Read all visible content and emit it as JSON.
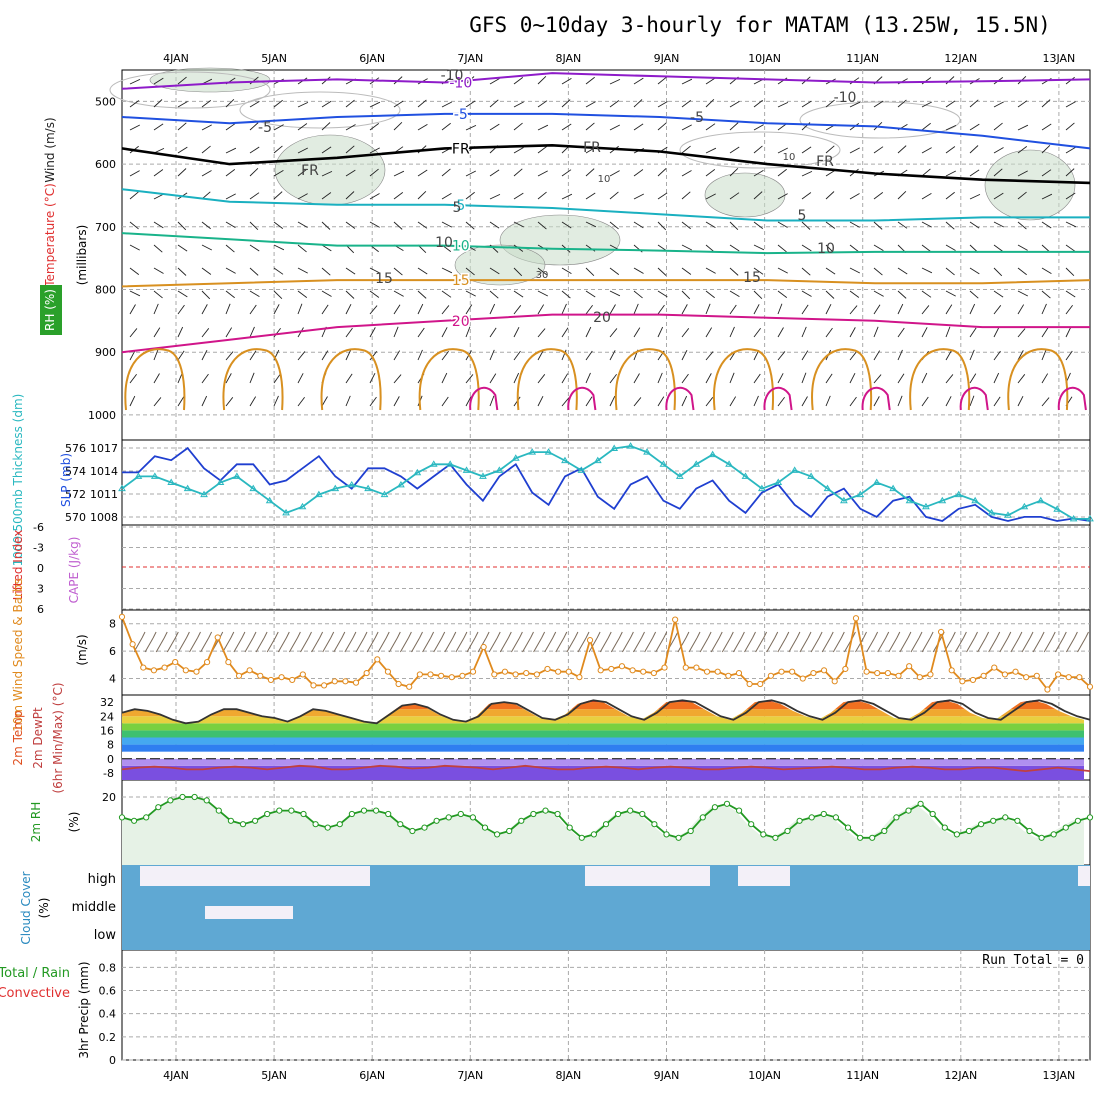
{
  "title": "GFS 0~10day 3-hourly for MATAM (13.25W, 15.5N)",
  "colors": {
    "frame": "#000000",
    "grid": "#aaaaaa",
    "slp": "#1f3fd0",
    "thickness": "#2ab8c0",
    "wind10": "#e08a1e",
    "barb": "#7a6a5a",
    "rh2m": "#229922",
    "cloud": "#5fa8d3",
    "clear": "#f3f0f8",
    "temp_iso": [
      "#8e1bc9",
      "#2050e0",
      "#1f8fe0",
      "#1ab0c0",
      "#19b38a",
      "#d89020",
      "#d0158a"
    ],
    "rh_fill": "#c8dcc8",
    "lifted_index": "#e03030"
  },
  "chart_data": [
    {
      "name": "upper_air",
      "type": "line",
      "xticks": [
        "4JAN",
        "5JAN",
        "6JAN",
        "7JAN",
        "8JAN",
        "9JAN",
        "10JAN",
        "11JAN",
        "12JAN",
        "13JAN"
      ],
      "yticks": [
        "500",
        "600",
        "700",
        "800",
        "900",
        "1000"
      ],
      "ylim": [
        450,
        1040
      ],
      "ylabel": "Wind (m/s)",
      "ylabel_temp": "Temperature (°C)",
      "ylabel_rh": "RH (%)",
      "ylabel_pressure": "(millibars)",
      "contour_labels": [
        "-10",
        "-10",
        "-5",
        "-5",
        "FR",
        "FR",
        "FR",
        "5",
        "5",
        "10",
        "10",
        "15",
        "15",
        "20",
        "10",
        "10",
        "30"
      ],
      "isotherms": [
        {
          "name": "-10",
          "y": [
            480,
            470,
            465,
            470,
            455,
            460,
            465,
            470,
            468,
            465
          ]
        },
        {
          "name": "-5",
          "y": [
            525,
            535,
            525,
            520,
            520,
            525,
            535,
            540,
            555,
            575
          ]
        },
        {
          "name": "FR",
          "y": [
            575,
            600,
            590,
            575,
            570,
            580,
            600,
            615,
            625,
            630
          ]
        },
        {
          "name": "5",
          "y": [
            640,
            660,
            665,
            665,
            670,
            680,
            690,
            690,
            685,
            685
          ]
        },
        {
          "name": "10",
          "y": [
            710,
            720,
            730,
            730,
            735,
            738,
            742,
            740,
            740,
            740
          ]
        },
        {
          "name": "15",
          "y": [
            795,
            790,
            785,
            785,
            785,
            785,
            785,
            790,
            790,
            785
          ]
        },
        {
          "name": "20",
          "y": [
            900,
            880,
            860,
            850,
            840,
            840,
            845,
            850,
            860,
            860
          ]
        }
      ]
    },
    {
      "name": "thickness_slp",
      "type": "line",
      "ylabel_thickness": "1000-500mb Thickness (dm)",
      "ylabel_slp": "SLP (mb)",
      "yticks_left": [
        "576",
        "574",
        "572",
        "570"
      ],
      "yticks_right": [
        "1017",
        "1014",
        "1011",
        "1008"
      ],
      "series": [
        {
          "name": "SLP (mb)",
          "ylim": [
            1007,
            1017.5
          ],
          "values": [
            1013.5,
            1013.5,
            1015.5,
            1015,
            1016.5,
            1014,
            1012.5,
            1014.5,
            1014.5,
            1012,
            1012.5,
            1014,
            1015.5,
            1013,
            1011.5,
            1014,
            1014,
            1013,
            1011.5,
            1013,
            1014.5,
            1012,
            1010,
            1013,
            1014.5,
            1011,
            1009.5,
            1013,
            1014,
            1010.5,
            1009,
            1012,
            1013,
            1010,
            1009,
            1011.5,
            1012.5,
            1010,
            1008.5,
            1011,
            1012,
            1009.5,
            1008,
            1010.5,
            1011.5,
            1009,
            1008,
            1010,
            1010.5,
            1008,
            1007.5,
            1009,
            1009.5,
            1008,
            1007.5,
            1008,
            1008,
            1007.5,
            1007.8,
            1007.5,
            1007.5,
            1007.8,
            1008,
            1008,
            1008,
            1008,
            1008,
            1008,
            1008,
            1008,
            1008,
            1008,
            1008,
            1008,
            1008,
            1008,
            1008,
            1008,
            1008,
            1008
          ]
        },
        {
          "name": "1000-500mb Thickness (dm)",
          "ylim": [
            569.5,
            576.5
          ],
          "values": [
            572.5,
            573.5,
            573.5,
            573,
            572.5,
            572,
            573,
            573.5,
            572.5,
            571.5,
            570.5,
            571,
            572,
            572.5,
            572.8,
            572.5,
            572,
            572.8,
            573.8,
            574.5,
            574.5,
            574,
            573.5,
            574,
            575,
            575.5,
            575.5,
            574.8,
            574,
            574.8,
            575.8,
            576,
            575.5,
            574.5,
            573.5,
            574.5,
            575.3,
            574.5,
            573.5,
            572.5,
            573,
            574,
            573.5,
            572.5,
            571.5,
            572,
            573,
            572.5,
            571.5,
            571,
            571.5,
            572,
            571.5,
            570.5,
            570.3,
            571,
            571.5,
            570.8,
            570,
            570
          ]
        }
      ]
    },
    {
      "name": "stability",
      "type": "line",
      "ylabel_li": "Lifted Index",
      "ylabel_cape": "CAPE (J/kg)",
      "yticks": [
        "-6",
        "-3",
        "0",
        "3",
        "6"
      ],
      "ylim": [
        -6,
        6
      ],
      "series": [
        {
          "name": "Lifted Index",
          "values": []
        }
      ]
    },
    {
      "name": "wind10m",
      "type": "line",
      "ylabel": "10m Wind Speed & Barbs",
      "yunit": "(m/s)",
      "yticks": [
        "8",
        "6",
        "4"
      ],
      "ylim": [
        2.8,
        9
      ],
      "series": [
        {
          "name": "10m Wind Speed",
          "values": [
            8.5,
            6.5,
            4.8,
            4.6,
            4.8,
            5.2,
            4.6,
            4.5,
            5.2,
            7,
            5.2,
            4.2,
            4.6,
            4.2,
            3.9,
            4.1,
            3.9,
            4.3,
            3.5,
            3.5,
            3.8,
            3.8,
            3.7,
            4.4,
            5.4,
            4.5,
            3.6,
            3.4,
            4.3,
            4.3,
            4.2,
            4.1,
            4.2,
            4.5,
            6.3,
            4.3,
            4.5,
            4.3,
            4.4,
            4.3,
            4.7,
            4.5,
            4.5,
            4.1,
            6.8,
            4.6,
            4.7,
            4.9,
            4.6,
            4.5,
            4.4,
            4.8,
            8.3,
            4.8,
            4.8,
            4.5,
            4.5,
            4.2,
            4.4,
            3.6,
            3.6,
            4.2,
            4.5,
            4.5,
            4.0,
            4.4,
            4.6,
            3.8,
            4.7,
            8.4,
            4.5,
            4.4,
            4.4,
            4.2,
            4.9,
            4.1,
            4.3,
            7.4,
            4.6,
            3.8,
            3.9,
            4.2,
            4.8,
            4.3,
            4.5,
            4.1,
            4.2,
            3.2,
            4.3,
            4.1,
            4.1,
            3.4
          ]
        }
      ]
    },
    {
      "name": "temperature_2m",
      "type": "area",
      "ylabel_temp": "2m Temp",
      "ylabel_dew": "2m DewPt",
      "ylabel_minmax": "(6hr Min/Max) (°C)",
      "yticks": [
        "32",
        "24",
        "16",
        "8",
        "0",
        "-8"
      ],
      "ylim": [
        -12,
        36
      ],
      "series": [
        {
          "name": "2m Temp",
          "values": [
            26,
            28,
            27,
            25,
            22,
            20,
            21,
            25,
            28,
            28,
            26,
            24,
            23,
            21,
            24,
            28,
            27,
            25,
            23,
            21,
            20,
            25,
            30,
            31,
            29,
            25,
            22,
            21,
            24,
            31,
            32,
            31,
            27,
            23,
            22,
            25,
            31,
            33,
            32,
            28,
            24,
            22,
            26,
            32,
            33,
            32,
            28,
            24,
            22,
            26,
            32,
            33,
            31,
            27,
            24,
            22,
            26,
            32,
            33,
            31,
            27,
            23,
            22,
            26,
            32,
            33,
            31,
            26,
            23,
            22,
            27,
            32,
            33,
            31,
            27,
            24,
            22
          ]
        },
        {
          "name": "2m DewPt",
          "values": [
            -6,
            -5,
            -4.5,
            -5,
            -6,
            -6,
            -5,
            -4.5,
            -5,
            -6,
            -5,
            -4,
            -4.5,
            -6,
            -6,
            -5,
            -4,
            -4.5,
            -5.5,
            -5,
            -4,
            -4.5,
            -5,
            -6,
            -5,
            -4,
            -5,
            -6,
            -6,
            -5,
            -4.5,
            -5,
            -6,
            -5,
            -4.5,
            -5,
            -6,
            -6,
            -5,
            -4.5,
            -5,
            -6,
            -5.5,
            -5,
            -4.5,
            -5,
            -6,
            -6,
            -5,
            -4.5,
            -5,
            -6,
            -6,
            -5,
            -5,
            -6,
            -7,
            -6,
            -5,
            -6,
            -7
          ]
        }
      ]
    },
    {
      "name": "rh_2m",
      "type": "area",
      "ylabel": "2m RH",
      "yunit": "(%)",
      "yticks": [
        "20"
      ],
      "ylim": [
        0,
        25
      ],
      "series": [
        {
          "name": "2m RH",
          "values": [
            14,
            13,
            14,
            17,
            19,
            20,
            20,
            19,
            16,
            13,
            12,
            13,
            15,
            16,
            16,
            15,
            12,
            11,
            12,
            15,
            16,
            16,
            15,
            12,
            10,
            11,
            13,
            14,
            15,
            14,
            11,
            9,
            10,
            13,
            15,
            16,
            15,
            11,
            8,
            9,
            12,
            15,
            16,
            15,
            12,
            9,
            8,
            10,
            14,
            17,
            18,
            16,
            12,
            9,
            8,
            10,
            13,
            14,
            15,
            14,
            11,
            8,
            8,
            10,
            14,
            16,
            18,
            15,
            11,
            9,
            10,
            12,
            13,
            14,
            13,
            10,
            8,
            9,
            11,
            13,
            14
          ]
        }
      ]
    },
    {
      "name": "cloud_cover",
      "type": "heatmap",
      "ylabel": "Cloud Cover",
      "yunit": "(%)",
      "levels": [
        "high",
        "middle",
        "low"
      ],
      "high": [
        0,
        20,
        20,
        20,
        10,
        100,
        100,
        100,
        100,
        100,
        100,
        100,
        100,
        100,
        100,
        100,
        100,
        100,
        100,
        100,
        100,
        100,
        100,
        100,
        100,
        100,
        100,
        100,
        100,
        100,
        100,
        100,
        100,
        100,
        100,
        100,
        100,
        100,
        0,
        0,
        0,
        0,
        0,
        0,
        0,
        0,
        0,
        0,
        0,
        0,
        0,
        0,
        0,
        0,
        0,
        0,
        0,
        0,
        0,
        0,
        0,
        0,
        0,
        0,
        0,
        0,
        0,
        0,
        0,
        0,
        0,
        0,
        0,
        0,
        0,
        0,
        0,
        0,
        0,
        0,
        0,
        0,
        0,
        0,
        0,
        0,
        0,
        0,
        0,
        0,
        0,
        0,
        0,
        0
      ],
      "middle": [
        0,
        0,
        0,
        0,
        0,
        0,
        0,
        0,
        0,
        0,
        0,
        0,
        0,
        0,
        0,
        0,
        0,
        0,
        0,
        0,
        0,
        0,
        0,
        0,
        0,
        0,
        0,
        0,
        0,
        0,
        0,
        0,
        0,
        0,
        0,
        0,
        0,
        0,
        0,
        0,
        0,
        0,
        0,
        0,
        0,
        0,
        0,
        0,
        0,
        0,
        0,
        0,
        0,
        0,
        0,
        0,
        0,
        0,
        0,
        0,
        0,
        0,
        0,
        0,
        0,
        0,
        0,
        0,
        0,
        0,
        0,
        0,
        0,
        0,
        0,
        0,
        0,
        0,
        0,
        0,
        0,
        0,
        0,
        0,
        0,
        0,
        0,
        0,
        0,
        0,
        0,
        0,
        0,
        0
      ],
      "low": [
        0,
        0,
        0,
        0,
        0,
        0,
        0,
        0,
        0,
        0,
        0,
        0,
        0,
        0,
        0,
        0,
        0,
        0,
        0,
        0,
        0,
        0,
        0,
        0,
        0,
        0,
        0,
        0,
        0,
        0,
        0,
        0,
        0,
        0,
        0,
        0,
        0,
        0,
        0,
        0,
        0,
        0,
        0,
        0,
        0,
        0,
        0,
        0,
        0,
        0,
        0,
        0,
        0,
        0,
        0,
        0,
        0,
        0,
        0,
        0,
        0,
        0,
        0,
        0,
        0,
        0,
        0,
        0,
        0,
        0,
        0,
        0,
        0,
        0,
        0,
        0,
        0,
        0,
        0,
        0,
        0,
        0,
        0,
        0,
        0,
        0,
        0,
        0,
        0,
        0,
        0,
        0,
        0,
        0
      ],
      "high_clear": [
        0,
        1,
        1,
        1,
        1,
        0,
        0,
        0,
        0,
        0,
        0,
        0,
        0,
        0,
        0,
        0,
        0,
        0,
        0,
        0,
        0,
        0,
        0,
        0,
        0,
        0,
        0,
        0,
        0,
        0,
        0,
        0,
        0,
        0,
        0,
        0,
        0,
        0,
        0,
        0,
        0,
        0,
        0,
        0,
        0,
        0,
        0,
        0,
        0,
        0,
        0,
        0,
        0,
        0,
        0,
        0,
        0,
        0,
        0,
        0,
        0,
        0,
        0,
        0,
        0,
        0,
        0,
        0,
        0,
        0,
        0,
        0,
        0,
        0,
        0,
        0,
        0,
        0,
        0,
        0,
        0,
        0,
        0,
        0,
        0,
        0,
        0,
        0,
        0,
        0,
        0,
        0,
        0,
        0
      ]
    },
    {
      "name": "precipitation",
      "type": "bar",
      "ylabel_total": "Total / Rain",
      "ylabel_conv": "Convective",
      "ylabel": "3hr Precip (mm)",
      "yticks": [
        "0.8",
        "0.6",
        "0.4",
        "0.2",
        "0"
      ],
      "ylim": [
        0,
        0.95
      ],
      "run_total": "Run Total = 0",
      "values": []
    }
  ],
  "labels": {
    "rh_high": "high",
    "rh_middle": "middle",
    "rh_low": "low"
  }
}
